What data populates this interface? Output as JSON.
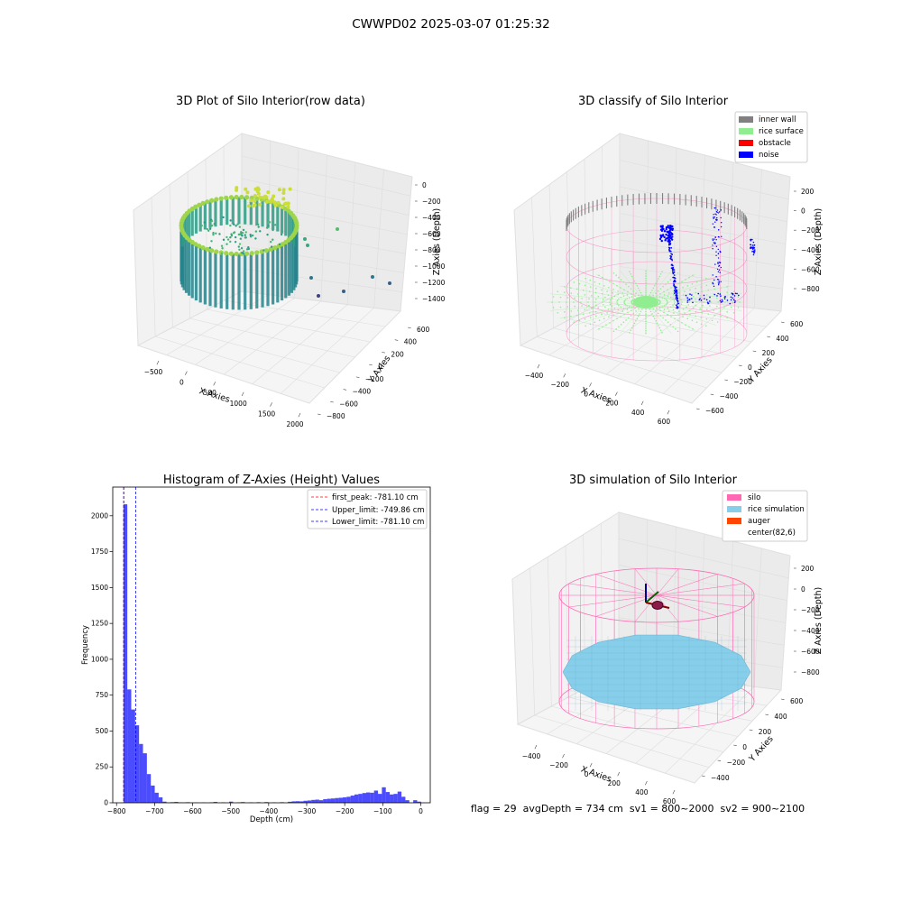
{
  "figure": {
    "suptitle": "CWWPD02 2025-03-07 01:25:32",
    "status_line": "flag = 29  avgDepth = 734 cm  sv1 = 800~2000  sv2 = 900~2100"
  },
  "colors": {
    "wall": "#808080",
    "rice_surface": "#90ee90",
    "obstacle": "#ff0000",
    "noise": "#0000ff",
    "silo": "#ff69b4",
    "rice_simulation": "#87ceeb",
    "auger": "#ff4500",
    "hist_bar": "#0000ff",
    "peak_line": "#ff0000",
    "limit_line": "#0000ff"
  },
  "chart_data": [
    {
      "type": "scatter3d",
      "title": "3D Plot of Silo Interior(row data)",
      "xlabel": "X Axies",
      "ylabel": "Y Axies",
      "zlabel": "Z Axies (Depth)",
      "xticks": [
        "−500",
        "0",
        "500",
        "1000",
        "1500",
        "2000"
      ],
      "yticks": [
        "−800",
        "−600",
        "−400",
        "−200",
        "0",
        "200",
        "400",
        "600"
      ],
      "zticks": [
        "0",
        "−200",
        "−400",
        "−600",
        "−800",
        "−1000",
        "−1200",
        "−1400"
      ],
      "colormap": "viridis"
    },
    {
      "type": "scatter3d",
      "title": "3D classify of Silo Interior",
      "xlabel": "X Axies",
      "ylabel": "Y Axies",
      "zlabel": "Z Axies (Depth)",
      "xticks": [
        "−400",
        "−200",
        "0",
        "200",
        "400",
        "600"
      ],
      "yticks": [
        "−600",
        "−400",
        "−200",
        "0",
        "200",
        "400",
        "600"
      ],
      "zticks": [
        "200",
        "0",
        "−200",
        "−400",
        "−600",
        "−800"
      ],
      "legend": [
        "inner wall",
        "rice surface",
        "obstacle",
        "noise"
      ],
      "legend_position": "top-right"
    },
    {
      "type": "bar",
      "title": "Histogram of Z-Axies (Height) Values",
      "xlabel": "Depth (cm)",
      "ylabel": "Frequency",
      "xlim": [
        -810,
        25
      ],
      "ylim": [
        0,
        2200
      ],
      "xticks": [
        -800,
        -700,
        -600,
        -500,
        -400,
        -300,
        -200,
        -100,
        0
      ],
      "yticks": [
        0,
        250,
        500,
        750,
        1000,
        1250,
        1500,
        1750,
        2000
      ],
      "xtick_labels": [
        "−800",
        "−700",
        "−600",
        "−500",
        "−400",
        "−300",
        "−200",
        "−100",
        "0"
      ],
      "bin_width": 10.3,
      "bins": [
        [
          -782,
          2080
        ],
        [
          -771.7,
          790
        ],
        [
          -761.4,
          650
        ],
        [
          -751.1,
          540
        ],
        [
          -740.8,
          410
        ],
        [
          -730.5,
          345
        ],
        [
          -720.2,
          200
        ],
        [
          -709.9,
          120
        ],
        [
          -699.6,
          70
        ],
        [
          -689.3,
          38
        ],
        [
          -679,
          8
        ],
        [
          -668.7,
          2
        ],
        [
          -658.4,
          4
        ],
        [
          -648.1,
          6
        ],
        [
          -637.8,
          3
        ],
        [
          -627.5,
          2
        ],
        [
          -617.2,
          4
        ],
        [
          -596.6,
          2
        ],
        [
          -576,
          2
        ],
        [
          -555.4,
          3
        ],
        [
          -545.1,
          6
        ],
        [
          -524.5,
          3
        ],
        [
          -503.9,
          8
        ],
        [
          -483.3,
          3
        ],
        [
          -472.9,
          5
        ],
        [
          -452.3,
          3
        ],
        [
          -431.7,
          4
        ],
        [
          -411.1,
          5
        ],
        [
          -390.5,
          3
        ],
        [
          -370,
          4
        ],
        [
          -349.4,
          7
        ],
        [
          -339.1,
          10
        ],
        [
          -328.8,
          11
        ],
        [
          -318.5,
          10
        ],
        [
          -308.2,
          14
        ],
        [
          -297.9,
          16
        ],
        [
          -287.6,
          20
        ],
        [
          -277.3,
          22
        ],
        [
          -267,
          18
        ],
        [
          -256.7,
          25
        ],
        [
          -246.4,
          28
        ],
        [
          -236.1,
          30
        ],
        [
          -225.8,
          33
        ],
        [
          -215.5,
          35
        ],
        [
          -205.2,
          38
        ],
        [
          -194.9,
          42
        ],
        [
          -184.6,
          50
        ],
        [
          -174.3,
          58
        ],
        [
          -164,
          62
        ],
        [
          -153.7,
          68
        ],
        [
          -143.4,
          72
        ],
        [
          -133.1,
          70
        ],
        [
          -122.8,
          85
        ],
        [
          -112.5,
          62
        ],
        [
          -102.2,
          108
        ],
        [
          -91.9,
          75
        ],
        [
          -81.6,
          58
        ],
        [
          -71.3,
          62
        ],
        [
          -61,
          78
        ],
        [
          -50.7,
          42
        ],
        [
          -40.4,
          18
        ],
        [
          -19.8,
          18
        ],
        [
          -9.5,
          8
        ]
      ],
      "vlines": [
        {
          "value": -781.1,
          "label": "first_peak: -781.10 cm",
          "color": "#ff0000"
        },
        {
          "value": -749.86,
          "label": "Upper_limit: -749.86 cm",
          "color": "#0000ff"
        },
        {
          "value": -781.1,
          "label": "Lower_limit: -781.10 cm",
          "color": "#0000ff"
        }
      ],
      "legend_position": "top-right"
    },
    {
      "type": "mesh3d",
      "title": "3D simulation of Silo Interior",
      "xlabel": "X Axies",
      "ylabel": "Y Axies",
      "zlabel": "Z Axies (Depth)",
      "xticks": [
        "−400",
        "−200",
        "0",
        "200",
        "400",
        "600"
      ],
      "yticks": [
        "−400",
        "−200",
        "0",
        "200",
        "400",
        "600"
      ],
      "zticks": [
        "200",
        "0",
        "−200",
        "−400",
        "−600",
        "−800"
      ],
      "legend": [
        "silo",
        "rice simulation",
        "auger",
        "center(82,6)"
      ],
      "legend_position": "top-right"
    }
  ]
}
